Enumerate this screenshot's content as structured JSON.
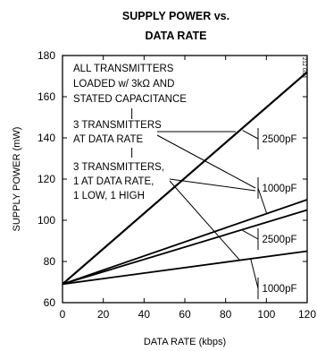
{
  "chart_data": {
    "type": "line",
    "title_lines": [
      "SUPPLY POWER vs.",
      "DATA RATE"
    ],
    "xlabel": "DATA RATE (kbps)",
    "ylabel": "SUPPLY POWER (mW)",
    "xlim": [
      0,
      120
    ],
    "ylim": [
      60,
      180
    ],
    "x_ticks": [
      "0",
      "20",
      "40",
      "60",
      "80",
      "100",
      "120"
    ],
    "y_ticks": [
      "60",
      "80",
      "100",
      "120",
      "140",
      "160",
      "180"
    ],
    "x_tick_values": [
      0,
      20,
      40,
      60,
      80,
      100,
      120
    ],
    "y_tick_values": [
      60,
      80,
      100,
      120,
      140,
      160,
      180
    ],
    "grid": false,
    "notes": [
      "ALL TRANSMITTERS",
      "LOADED w/ 3kΩ AND",
      "STATED CAPACITANCE",
      "3 TRANSMITTERS",
      "AT DATA RATE",
      "3 TRANSMITTERS,",
      "1 AT DATA RATE,",
      "1 LOW, 1 HIGH"
    ],
    "figure_code": "212 G84",
    "series": [
      {
        "name": "2500pF",
        "group": "3 TRANSMITTERS AT DATA RATE",
        "x": [
          0,
          120
        ],
        "y": [
          69,
          172
        ]
      },
      {
        "name": "1000pF",
        "group": "3 TRANSMITTERS AT DATA RATE",
        "x": [
          0,
          120
        ],
        "y": [
          69,
          110
        ]
      },
      {
        "name": "2500pF",
        "group": "3 TRANSMITTERS, 1 AT DATA RATE, 1 LOW, 1 HIGH",
        "x": [
          0,
          120
        ],
        "y": [
          69,
          105
        ]
      },
      {
        "name": "1000pF",
        "group": "3 TRANSMITTERS, 1 AT DATA RATE, 1 LOW, 1 HIGH",
        "x": [
          0,
          120
        ],
        "y": [
          69,
          85
        ]
      }
    ]
  }
}
